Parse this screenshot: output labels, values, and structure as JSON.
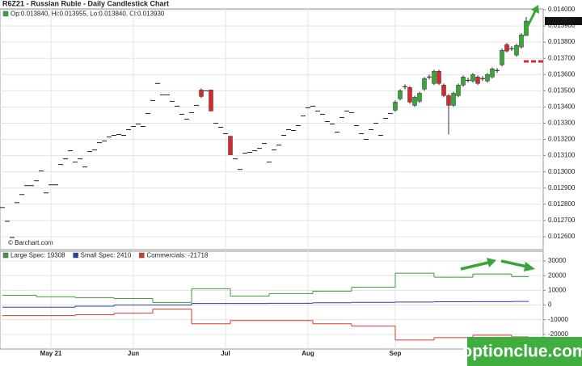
{
  "chart_data": [
    {
      "type": "candlestick",
      "title": "R6Z21 - Russian Ruble - Daily Candlestick Chart",
      "legend_text": "Op:0.013840, Hi:0.013955, Lo:0.013840, Cl:0.013930",
      "credit": "© Barchart.com",
      "up_color": "#35a835",
      "down_color": "#d42a2a",
      "flat_color": "#222222",
      "grid": true,
      "xlim": [
        -0.5,
        111.5
      ],
      "xticks": [
        {
          "value": 10,
          "label": "May 21"
        },
        {
          "value": 27,
          "label": "Jun"
        },
        {
          "value": 46,
          "label": "Jul"
        },
        {
          "value": 63,
          "label": "Aug"
        },
        {
          "value": 81,
          "label": "Sep"
        }
      ],
      "ylim": [
        0.01252,
        0.014005
      ],
      "yticks": [
        {
          "value": 0.0126,
          "label": "0.012600"
        },
        {
          "value": 0.0127,
          "label": "0.012700"
        },
        {
          "value": 0.0128,
          "label": "0.012800"
        },
        {
          "value": 0.0129,
          "label": "0.012900"
        },
        {
          "value": 0.013,
          "label": "0.013000"
        },
        {
          "value": 0.0131,
          "label": "0.013100"
        },
        {
          "value": 0.0132,
          "label": "0.013200"
        },
        {
          "value": 0.0133,
          "label": "0.013300"
        },
        {
          "value": 0.0134,
          "label": "0.013400"
        },
        {
          "value": 0.0135,
          "label": "0.013500"
        },
        {
          "value": 0.0136,
          "label": "0.013600"
        },
        {
          "value": 0.0137,
          "label": "0.013700"
        },
        {
          "value": 0.0138,
          "label": "0.013800"
        },
        {
          "value": 0.0139,
          "label": "0.013900"
        },
        {
          "value": 0.014,
          "label": "0.014000"
        }
      ],
      "last_price": {
        "value": 0.01393,
        "label": "0.013930"
      },
      "candles": [
        [
          0.01278,
          0.01278,
          0.01278,
          0.01278
        ],
        [
          0.012695,
          0.012695,
          0.012695,
          0.012695
        ],
        [
          0.012595,
          0.012595,
          0.012595,
          0.012595
        ],
        [
          0.01281,
          0.01281,
          0.01281,
          0.01281
        ],
        [
          0.01286,
          0.01286,
          0.01286,
          0.01286
        ],
        [
          0.012915,
          0.012915,
          0.012915,
          0.012915
        ],
        [
          0.012915,
          0.012915,
          0.012915,
          0.012915
        ],
        [
          0.012945,
          0.012945,
          0.012945,
          0.012945
        ],
        [
          0.013005,
          0.013005,
          0.013005,
          0.013005
        ],
        [
          0.01287,
          0.01287,
          0.01287,
          0.01287
        ],
        [
          0.01292,
          0.01292,
          0.01292,
          0.01292
        ],
        [
          0.01292,
          0.01292,
          0.01292,
          0.01292
        ],
        [
          0.013045,
          0.013045,
          0.013045,
          0.013045
        ],
        [
          0.01308,
          0.01308,
          0.01308,
          0.01308
        ],
        [
          0.01313,
          0.01313,
          0.01313,
          0.01313
        ],
        [
          0.01306,
          0.01306,
          0.01306,
          0.01306
        ],
        [
          0.01308,
          0.01308,
          0.01308,
          0.01308
        ],
        [
          0.01303,
          0.01303,
          0.01303,
          0.01303
        ],
        [
          0.013125,
          0.013125,
          0.013125,
          0.013125
        ],
        [
          0.013135,
          0.013135,
          0.013135,
          0.013135
        ],
        [
          0.01318,
          0.01318,
          0.01318,
          0.01318
        ],
        [
          0.01319,
          0.01319,
          0.01319,
          0.01319
        ],
        [
          0.013215,
          0.013215,
          0.013215,
          0.013215
        ],
        [
          0.013225,
          0.013225,
          0.013225,
          0.013225
        ],
        [
          0.01323,
          0.01323,
          0.01323,
          0.01323
        ],
        [
          0.013225,
          0.013225,
          0.013225,
          0.013225
        ],
        [
          0.01326,
          0.01326,
          0.01326,
          0.01326
        ],
        [
          0.01328,
          0.01328,
          0.01328,
          0.01328
        ],
        [
          0.013295,
          0.013295,
          0.013295,
          0.013295
        ],
        [
          0.01328,
          0.01328,
          0.01328,
          0.01328
        ],
        [
          0.01336,
          0.01336,
          0.01336,
          0.01336
        ],
        [
          0.01344,
          0.01344,
          0.01344,
          0.01344
        ],
        [
          0.013545,
          0.013545,
          0.013545,
          0.013545
        ],
        [
          0.013475,
          0.013475,
          0.013475,
          0.013475
        ],
        [
          0.013475,
          0.013475,
          0.013475,
          0.013475
        ],
        [
          0.013435,
          0.013435,
          0.013435,
          0.013435
        ],
        [
          0.013405,
          0.013405,
          0.013405,
          0.013405
        ],
        [
          0.013355,
          0.013355,
          0.013355,
          0.013355
        ],
        [
          0.013325,
          0.013325,
          0.013325,
          0.013325
        ],
        [
          0.013365,
          0.013365,
          0.013365,
          0.013365
        ],
        [
          0.01341,
          0.01341,
          0.01341,
          0.01341
        ],
        [
          0.013505,
          0.013515,
          0.013455,
          0.013465
        ],
        [
          0.0135,
          0.0135,
          0.0135,
          0.0135
        ],
        [
          0.013505,
          0.013505,
          0.013375,
          0.013375
        ],
        [
          0.0133,
          0.0133,
          0.0133,
          0.0133
        ],
        [
          0.013275,
          0.013275,
          0.013275,
          0.013275
        ],
        [
          0.013235,
          0.013235,
          0.013235,
          0.013235
        ],
        [
          0.01322,
          0.01322,
          0.013105,
          0.013105
        ],
        [
          0.01308,
          0.01308,
          0.01308,
          0.01308
        ],
        [
          0.013015,
          0.013015,
          0.013015,
          0.013015
        ],
        [
          0.013115,
          0.013115,
          0.013115,
          0.013115
        ],
        [
          0.01312,
          0.01312,
          0.01312,
          0.01312
        ],
        [
          0.01313,
          0.01313,
          0.01313,
          0.01313
        ],
        [
          0.013145,
          0.013145,
          0.013145,
          0.013145
        ],
        [
          0.013175,
          0.013175,
          0.013175,
          0.013175
        ],
        [
          0.01306,
          0.01306,
          0.01306,
          0.01306
        ],
        [
          0.013135,
          0.013135,
          0.013135,
          0.013135
        ],
        [
          0.013165,
          0.013165,
          0.013165,
          0.013165
        ],
        [
          0.013225,
          0.013225,
          0.013225,
          0.013225
        ],
        [
          0.01326,
          0.01326,
          0.01326,
          0.01326
        ],
        [
          0.013255,
          0.013255,
          0.013255,
          0.013255
        ],
        [
          0.013285,
          0.013285,
          0.013285,
          0.013285
        ],
        [
          0.013345,
          0.013345,
          0.013345,
          0.013345
        ],
        [
          0.013395,
          0.013395,
          0.013395,
          0.013395
        ],
        [
          0.013405,
          0.013405,
          0.013405,
          0.013405
        ],
        [
          0.013375,
          0.013375,
          0.013375,
          0.013375
        ],
        [
          0.013355,
          0.013355,
          0.013355,
          0.013355
        ],
        [
          0.01331,
          0.01331,
          0.01331,
          0.01331
        ],
        [
          0.013295,
          0.013295,
          0.013295,
          0.013295
        ],
        [
          0.013245,
          0.013245,
          0.013245,
          0.013245
        ],
        [
          0.013335,
          0.013335,
          0.013335,
          0.013335
        ],
        [
          0.013375,
          0.013375,
          0.013375,
          0.013375
        ],
        [
          0.013365,
          0.013365,
          0.013365,
          0.013365
        ],
        [
          0.013285,
          0.013285,
          0.013285,
          0.013285
        ],
        [
          0.013235,
          0.013235,
          0.013235,
          0.013235
        ],
        [
          0.0132,
          0.0132,
          0.0132,
          0.0132
        ],
        [
          0.01326,
          0.01326,
          0.01326,
          0.01326
        ],
        [
          0.0133,
          0.0133,
          0.0133,
          0.0133
        ],
        [
          0.013225,
          0.013225,
          0.013225,
          0.013225
        ],
        [
          0.01333,
          0.01333,
          0.01333,
          0.01333
        ],
        [
          0.01336,
          0.01336,
          0.01336,
          0.01336
        ],
        [
          0.01338,
          0.01344,
          0.01337,
          0.01343
        ],
        [
          0.01345,
          0.01351,
          0.01344,
          0.0135
        ],
        [
          0.013525,
          0.01354,
          0.01351,
          0.013525
        ],
        [
          0.01352,
          0.01353,
          0.01342,
          0.01343
        ],
        [
          0.01341,
          0.01347,
          0.0134,
          0.01346
        ],
        [
          0.013435,
          0.013495,
          0.013425,
          0.013485
        ],
        [
          0.01351,
          0.013585,
          0.0135,
          0.013575
        ],
        [
          0.013585,
          0.0136,
          0.01357,
          0.013585
        ],
        [
          0.013545,
          0.01363,
          0.013535,
          0.01362
        ],
        [
          0.01362,
          0.01363,
          0.013535,
          0.013545
        ],
        [
          0.013535,
          0.013545,
          0.01346,
          0.01347
        ],
        [
          0.01347,
          0.01348,
          0.01323,
          0.01341
        ],
        [
          0.01341,
          0.013495,
          0.0134,
          0.013485
        ],
        [
          0.01347,
          0.013545,
          0.01346,
          0.013535
        ],
        [
          0.013535,
          0.013595,
          0.013525,
          0.013585
        ],
        [
          0.013565,
          0.01358,
          0.01355,
          0.013565
        ],
        [
          0.01356,
          0.01361,
          0.01355,
          0.0136
        ],
        [
          0.013585,
          0.013595,
          0.013535,
          0.013545
        ],
        [
          0.013575,
          0.01359,
          0.01356,
          0.013575
        ],
        [
          0.01356,
          0.01361,
          0.01355,
          0.0136
        ],
        [
          0.013585,
          0.013645,
          0.013575,
          0.013635
        ],
        [
          0.013625,
          0.01364,
          0.01361,
          0.013625
        ],
        [
          0.01366,
          0.01376,
          0.01365,
          0.01375
        ],
        [
          0.013785,
          0.013795,
          0.013735,
          0.013745
        ],
        [
          0.01376,
          0.013775,
          0.013745,
          0.01376
        ],
        [
          0.01372,
          0.01379,
          0.01371,
          0.01378
        ],
        [
          0.01377,
          0.013855,
          0.01376,
          0.013845
        ],
        [
          0.01384,
          0.013955,
          0.01384,
          0.01393
        ]
      ]
    },
    {
      "type": "step",
      "grid": true,
      "xlim": [
        -0.5,
        111.5
      ],
      "x": [
        0,
        7,
        15,
        23,
        31,
        39,
        47,
        55,
        64,
        72,
        81,
        89,
        97,
        105
      ],
      "ylim": [
        -30000,
        36600
      ],
      "yticks": [
        30000,
        20000,
        10000,
        0,
        -10000,
        -20000
      ],
      "series": [
        {
          "name": "Large Spec: 19308",
          "color": "#3f9a3f",
          "values": [
            6700,
            5600,
            5000,
            4400,
            1700,
            11100,
            6100,
            7800,
            9400,
            12200,
            21700,
            18900,
            21100,
            19308
          ]
        },
        {
          "name": "Small Spec: 2410",
          "color": "#2a3fa8",
          "values": [
            -1500,
            -1500,
            -800,
            0,
            0,
            1000,
            1000,
            1200,
            1500,
            1800,
            2000,
            2200,
            2300,
            2410
          ]
        },
        {
          "name": "Commercials: -21718",
          "color": "#d63a2a",
          "values": [
            -7200,
            -7200,
            -6700,
            -5600,
            -2800,
            -12800,
            -10600,
            -10600,
            -12800,
            -14400,
            -23900,
            -22200,
            -20600,
            -21718
          ]
        }
      ]
    }
  ],
  "watermark": "optionclue.com"
}
